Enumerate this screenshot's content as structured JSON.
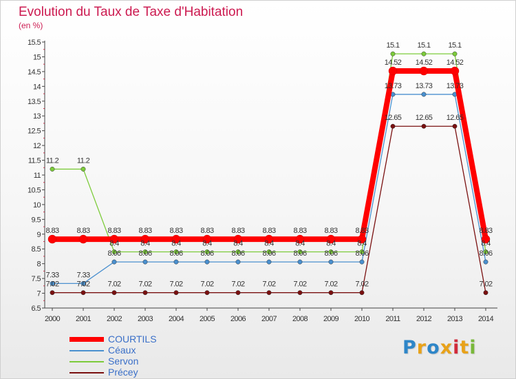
{
  "header": {
    "title": "Evolution du Taux de Taxe d'Habitation",
    "subtitle": "(en %)"
  },
  "logo": {
    "text": "Proxiti",
    "letter_colors": [
      "#2e86c8",
      "#e8a21a",
      "#2e86c8",
      "#e8a21a",
      "#d12a3a",
      "#e8a21a",
      "#79b83a"
    ]
  },
  "chart_data": {
    "type": "line",
    "x": [
      "2000",
      "2001",
      "2002",
      "2003",
      "2004",
      "2005",
      "2006",
      "2007",
      "2008",
      "2009",
      "2010",
      "2011",
      "2012",
      "2013",
      "2014"
    ],
    "ylim": [
      6.5,
      15.5
    ],
    "yticks": [
      "6.5",
      "7",
      "7.5",
      "8",
      "8.5",
      "9",
      "9.5",
      "10",
      "10.5",
      "11",
      "11.5",
      "12",
      "12.5",
      "13",
      "13.5",
      "14",
      "14.5",
      "15",
      "15.5"
    ],
    "grid": false,
    "legend_position": "bottom-left",
    "series": [
      {
        "name": "COURTILS",
        "color": "#ff0000",
        "thick": true,
        "values": [
          8.83,
          8.83,
          8.83,
          8.83,
          8.83,
          8.83,
          8.83,
          8.83,
          8.83,
          8.83,
          8.83,
          14.52,
          14.52,
          14.52,
          8.83
        ],
        "labels": [
          "8.83",
          "8.83",
          "8.83",
          "8.83",
          "8.83",
          "8.83",
          "8.83",
          "8.83",
          "8.83",
          "8.83",
          "8.83",
          "14.52",
          "14.52",
          "14.52",
          "8.83"
        ]
      },
      {
        "name": "Céaux",
        "color": "#4a90cf",
        "thick": false,
        "values": [
          7.33,
          7.33,
          8.06,
          8.06,
          8.06,
          8.06,
          8.06,
          8.06,
          8.06,
          8.06,
          8.06,
          13.73,
          13.73,
          13.73,
          8.06
        ],
        "labels": [
          "7.33",
          "7.33",
          "8.06",
          "8.06",
          "8.06",
          "8.06",
          "8.06",
          "8.06",
          "8.06",
          "8.06",
          "8.06",
          "13.73",
          "13.73",
          "13.73",
          "8.06"
        ]
      },
      {
        "name": "Servon",
        "color": "#7ccb3a",
        "thick": false,
        "values": [
          11.2,
          11.2,
          8.4,
          8.4,
          8.4,
          8.4,
          8.4,
          8.4,
          8.4,
          8.4,
          8.4,
          15.1,
          15.1,
          15.1,
          8.4
        ],
        "labels": [
          "11.2",
          "11.2",
          "8.4",
          "8.4",
          "8.4",
          "8.4",
          "8.4",
          "8.4",
          "8.4",
          "8.4",
          "8.4",
          "15.1",
          "15.1",
          "15.1",
          "8.4"
        ]
      },
      {
        "name": "Précey",
        "color": "#7a1010",
        "thick": false,
        "values": [
          7.02,
          7.02,
          7.02,
          7.02,
          7.02,
          7.02,
          7.02,
          7.02,
          7.02,
          7.02,
          7.02,
          12.65,
          12.65,
          12.65,
          7.02
        ],
        "labels": [
          "7.02",
          "7.02",
          "7.02",
          "7.02",
          "7.02",
          "7.02",
          "7.02",
          "7.02",
          "7.02",
          "7.02",
          "7.02",
          "12.65",
          "12.65",
          "12.65",
          "7.02"
        ]
      }
    ]
  }
}
